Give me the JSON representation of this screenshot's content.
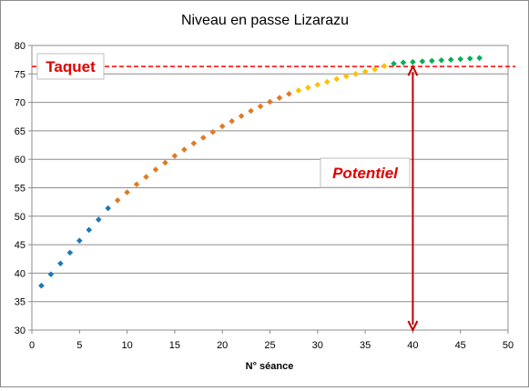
{
  "chart_data": {
    "type": "scatter",
    "title": "Niveau en passe Lizarazu",
    "xlabel": "N° séance",
    "ylabel": "",
    "xlim": [
      0,
      50
    ],
    "ylim": [
      30,
      80
    ],
    "x_ticks": [
      0,
      5,
      10,
      15,
      20,
      25,
      30,
      35,
      40,
      45,
      50
    ],
    "y_ticks": [
      30,
      35,
      40,
      45,
      50,
      55,
      60,
      65,
      70,
      75,
      80
    ],
    "grid": "horizontal",
    "series": [
      {
        "color": "#1f77b4",
        "x": [
          1,
          2,
          3,
          4,
          5,
          6,
          7,
          8
        ],
        "y": [
          37.8,
          39.8,
          41.7,
          43.6,
          45.7,
          47.6,
          49.4,
          51.4
        ]
      },
      {
        "color": "#e07b24",
        "x": [
          9,
          10,
          11,
          12,
          13,
          14,
          15,
          16,
          17,
          18,
          19,
          20,
          21,
          22,
          23,
          24,
          25,
          26,
          27
        ],
        "y": [
          52.8,
          54.2,
          55.6,
          56.9,
          58.2,
          59.4,
          60.6,
          61.7,
          62.8,
          63.8,
          64.8,
          65.8,
          66.7,
          67.6,
          68.5,
          69.3,
          70.1,
          70.8,
          71.5
        ]
      },
      {
        "color": "#ffc000",
        "x": [
          28,
          29,
          30,
          31,
          32,
          33,
          34,
          35,
          36,
          37
        ],
        "y": [
          72.1,
          72.6,
          73.1,
          73.6,
          74.1,
          74.6,
          75.0,
          75.4,
          75.8,
          76.4
        ]
      },
      {
        "color": "#00b050",
        "x": [
          38,
          39,
          40,
          41,
          42,
          43,
          44,
          45,
          46,
          47
        ],
        "y": [
          76.8,
          77.0,
          77.1,
          77.2,
          77.3,
          77.4,
          77.5,
          77.6,
          77.7,
          77.8
        ]
      }
    ],
    "reference_line": {
      "y": 76.3,
      "color": "#ff0000",
      "style": "dashed"
    },
    "annotations": [
      {
        "text": "Taquet",
        "color": "#e00000"
      },
      {
        "text": "Potentiel",
        "color": "#e00000"
      }
    ],
    "arrow": {
      "x": 40,
      "y_from": 30,
      "y_to": 76.3,
      "color": "#c00000",
      "double_headed": true
    }
  }
}
